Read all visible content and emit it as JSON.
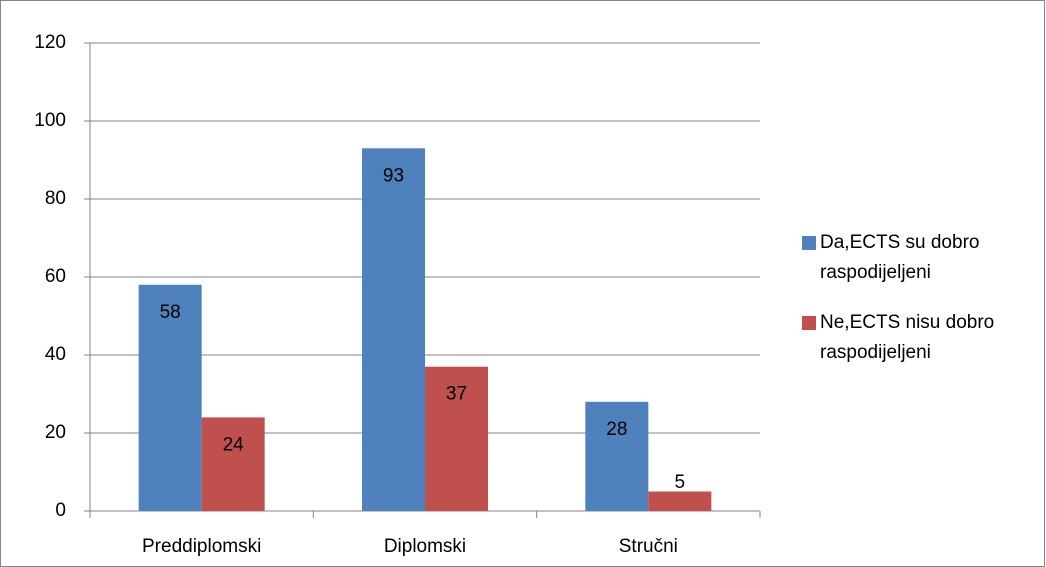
{
  "chart_data": {
    "type": "bar",
    "categories": [
      "Preddiplomski",
      "Diplomski",
      "Stručni"
    ],
    "series": [
      {
        "name": "Da,ECTS su dobro raspodijeljeni",
        "color": "#4f81bd",
        "values": [
          58,
          93,
          28
        ]
      },
      {
        "name": "Ne,ECTS nisu dobro raspodijeljeni",
        "color": "#c0504d",
        "values": [
          24,
          37,
          5
        ]
      }
    ],
    "ylim": [
      0,
      120
    ],
    "yticks": [
      0,
      20,
      40,
      60,
      80,
      100,
      120
    ],
    "grid": true,
    "legend": "right"
  }
}
